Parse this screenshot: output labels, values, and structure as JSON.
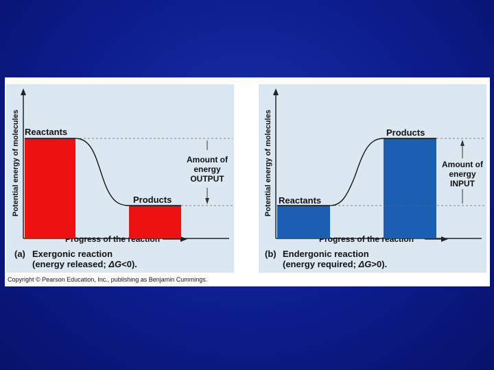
{
  "panels": {
    "a": {
      "y_axis_label": "Potential energy of molecules",
      "x_axis_label": "Progress of the reaction",
      "reactants_label": "Reactants",
      "products_label": "Products",
      "amount_line1": "Amount of",
      "amount_line2": "energy",
      "amount_line3": "OUTPUT",
      "caption_letter": "(a)",
      "caption_title": "Exergonic reaction",
      "caption_detail_pre": "(energy released; ",
      "caption_detail_var": "ΔG",
      "caption_detail_post": "<0).",
      "bar_color": "#ee1111"
    },
    "b": {
      "y_axis_label": "Potential energy of molecules",
      "x_axis_label": "Progress of the reaction",
      "reactants_label": "Reactants",
      "products_label": "Products",
      "amount_line1": "Amount of",
      "amount_line2": "energy",
      "amount_line3": "INPUT",
      "caption_letter": "(b)",
      "caption_title": "Endergonic reaction",
      "caption_detail_pre": "(energy required; ",
      "caption_detail_var": "ΔG",
      "caption_detail_post": ">0).",
      "bar_color": "#1a5fb4"
    }
  },
  "copyright": "Copyright © Pearson Education, Inc., publishing as Benjamin Cummings.",
  "colors": {
    "background": "#0c1c8c",
    "panel_bg": "#dce8f1",
    "exergonic_bar": "#ee1111",
    "endergonic_bar": "#1a5fb4"
  }
}
